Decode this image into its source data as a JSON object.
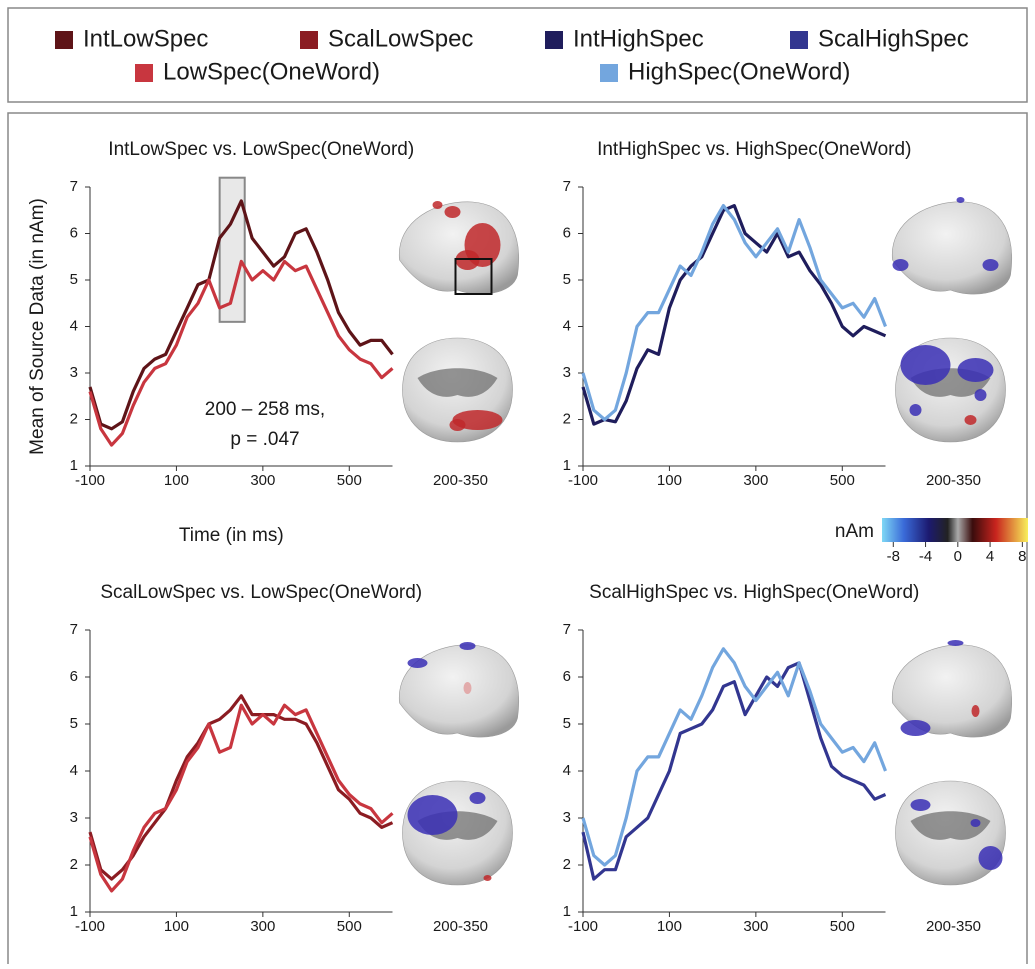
{
  "legend": [
    {
      "name": "IntLowSpec",
      "color": "#5e1418"
    },
    {
      "name": "ScalLowSpec",
      "color": "#8b1c22"
    },
    {
      "name": "IntHighSpec",
      "color": "#1f1d5c"
    },
    {
      "name": "ScalHighSpec",
      "color": "#323690"
    },
    {
      "name": "LowSpec(OneWord)",
      "color": "#c8363f"
    },
    {
      "name": "HighSpec(OneWord)",
      "color": "#73a6de"
    }
  ],
  "colorbar": {
    "label": "nAm",
    "lim": [
      -9.4,
      8.7
    ],
    "ticks": [
      -8,
      -4,
      0,
      4,
      8
    ]
  },
  "chart_data": [
    {
      "type": "line",
      "title": "IntLowSpec vs. LowSpec(OneWord)",
      "xlabel": "Time (in ms)",
      "ylabel": "Mean of Source Data (in nAm)",
      "annotation": [
        "200 – 258 ms,",
        "p = .047"
      ],
      "highlight": {
        "x": [
          200,
          258
        ],
        "y": [
          4.1,
          7.2
        ]
      },
      "brain_label": "200-350",
      "xlim": [
        -100,
        600
      ],
      "xticks": [
        -100,
        100,
        300,
        500
      ],
      "ylim": [
        1,
        7
      ],
      "yticks": [
        1,
        2,
        3,
        4,
        5,
        6,
        7
      ],
      "x": [
        -100,
        -75,
        -50,
        -25,
        0,
        25,
        50,
        75,
        100,
        125,
        150,
        175,
        200,
        225,
        250,
        275,
        300,
        325,
        350,
        375,
        400,
        425,
        450,
        475,
        500,
        525,
        550,
        575,
        600
      ],
      "series": [
        {
          "color": "#5e1418",
          "values": [
            2.7,
            1.9,
            1.8,
            1.95,
            2.6,
            3.1,
            3.3,
            3.4,
            3.9,
            4.4,
            4.9,
            5.0,
            5.9,
            6.2,
            6.7,
            5.9,
            5.6,
            5.3,
            5.5,
            6.0,
            6.1,
            5.6,
            5.0,
            4.3,
            3.9,
            3.6,
            3.7,
            3.7,
            3.4
          ]
        },
        {
          "color": "#c8363f",
          "values": [
            2.6,
            1.8,
            1.45,
            1.7,
            2.3,
            2.8,
            3.1,
            3.2,
            3.6,
            4.2,
            4.5,
            5.0,
            4.4,
            4.5,
            5.4,
            5.0,
            5.2,
            5.0,
            5.4,
            5.2,
            5.3,
            4.8,
            4.3,
            3.8,
            3.5,
            3.3,
            3.2,
            2.9,
            3.1
          ]
        }
      ]
    },
    {
      "type": "line",
      "title": "IntHighSpec vs. HighSpec(OneWord)",
      "brain_label": "200-350",
      "xlim": [
        -100,
        600
      ],
      "xticks": [
        -100,
        100,
        300,
        500
      ],
      "ylim": [
        1,
        7
      ],
      "yticks": [
        1,
        2,
        3,
        4,
        5,
        6,
        7
      ],
      "x": [
        -100,
        -75,
        -50,
        -25,
        0,
        25,
        50,
        75,
        100,
        125,
        150,
        175,
        200,
        225,
        250,
        275,
        300,
        325,
        350,
        375,
        400,
        425,
        450,
        475,
        500,
        525,
        550,
        575,
        600
      ],
      "series": [
        {
          "color": "#1f1d5c",
          "values": [
            2.7,
            1.9,
            2.0,
            1.95,
            2.4,
            3.1,
            3.5,
            3.4,
            4.4,
            5.0,
            5.3,
            5.5,
            6.0,
            6.5,
            6.6,
            6.0,
            5.8,
            5.6,
            6.0,
            5.5,
            5.6,
            5.2,
            4.9,
            4.5,
            4.0,
            3.8,
            4.0,
            3.9,
            3.8
          ]
        },
        {
          "color": "#73a6de",
          "values": [
            3.0,
            2.2,
            2.0,
            2.2,
            3.0,
            4.0,
            4.3,
            4.3,
            4.8,
            5.3,
            5.1,
            5.6,
            6.2,
            6.6,
            6.3,
            5.8,
            5.5,
            5.8,
            6.1,
            5.6,
            6.3,
            5.7,
            5.0,
            4.7,
            4.4,
            4.5,
            4.2,
            4.6,
            4.0
          ]
        }
      ]
    },
    {
      "type": "line",
      "title": "ScalLowSpec vs. LowSpec(OneWord)",
      "brain_label": "200-350",
      "xlim": [
        -100,
        600
      ],
      "xticks": [
        -100,
        100,
        300,
        500
      ],
      "ylim": [
        1,
        7
      ],
      "yticks": [
        1,
        2,
        3,
        4,
        5,
        6,
        7
      ],
      "x": [
        -100,
        -75,
        -50,
        -25,
        0,
        25,
        50,
        75,
        100,
        125,
        150,
        175,
        200,
        225,
        250,
        275,
        300,
        325,
        350,
        375,
        400,
        425,
        450,
        475,
        500,
        525,
        550,
        575,
        600
      ],
      "series": [
        {
          "color": "#8b1c22",
          "values": [
            2.7,
            1.9,
            1.7,
            1.9,
            2.2,
            2.6,
            2.9,
            3.2,
            3.8,
            4.3,
            4.6,
            5.0,
            5.1,
            5.3,
            5.6,
            5.2,
            5.2,
            5.2,
            5.1,
            5.1,
            5.0,
            4.6,
            4.1,
            3.6,
            3.4,
            3.1,
            3.0,
            2.8,
            2.9
          ]
        },
        {
          "color": "#c8363f",
          "values": [
            2.6,
            1.8,
            1.45,
            1.7,
            2.3,
            2.8,
            3.1,
            3.2,
            3.6,
            4.2,
            4.5,
            5.0,
            4.4,
            4.5,
            5.4,
            5.0,
            5.2,
            5.0,
            5.4,
            5.2,
            5.3,
            4.8,
            4.3,
            3.8,
            3.5,
            3.3,
            3.2,
            2.9,
            3.1
          ]
        }
      ]
    },
    {
      "type": "line",
      "title": "ScalHighSpec vs. HighSpec(OneWord)",
      "brain_label": "200-350",
      "xlim": [
        -100,
        600
      ],
      "xticks": [
        -100,
        100,
        300,
        500
      ],
      "ylim": [
        1,
        7
      ],
      "yticks": [
        1,
        2,
        3,
        4,
        5,
        6,
        7
      ],
      "x": [
        -100,
        -75,
        -50,
        -25,
        0,
        25,
        50,
        75,
        100,
        125,
        150,
        175,
        200,
        225,
        250,
        275,
        300,
        325,
        350,
        375,
        400,
        425,
        450,
        475,
        500,
        525,
        550,
        575,
        600
      ],
      "series": [
        {
          "color": "#323690",
          "values": [
            2.7,
            1.7,
            1.9,
            1.9,
            2.6,
            2.8,
            3.0,
            3.5,
            4.0,
            4.8,
            4.9,
            5.0,
            5.3,
            5.8,
            5.9,
            5.2,
            5.6,
            6.0,
            5.8,
            6.2,
            6.3,
            5.5,
            4.7,
            4.1,
            3.9,
            3.8,
            3.7,
            3.4,
            3.5
          ]
        },
        {
          "color": "#73a6de",
          "values": [
            3.0,
            2.2,
            2.0,
            2.2,
            3.0,
            4.0,
            4.3,
            4.3,
            4.8,
            5.3,
            5.1,
            5.6,
            6.2,
            6.6,
            6.3,
            5.8,
            5.5,
            5.8,
            6.1,
            5.6,
            6.3,
            5.7,
            5.0,
            4.7,
            4.4,
            4.5,
            4.2,
            4.6,
            4.0
          ]
        }
      ]
    }
  ]
}
